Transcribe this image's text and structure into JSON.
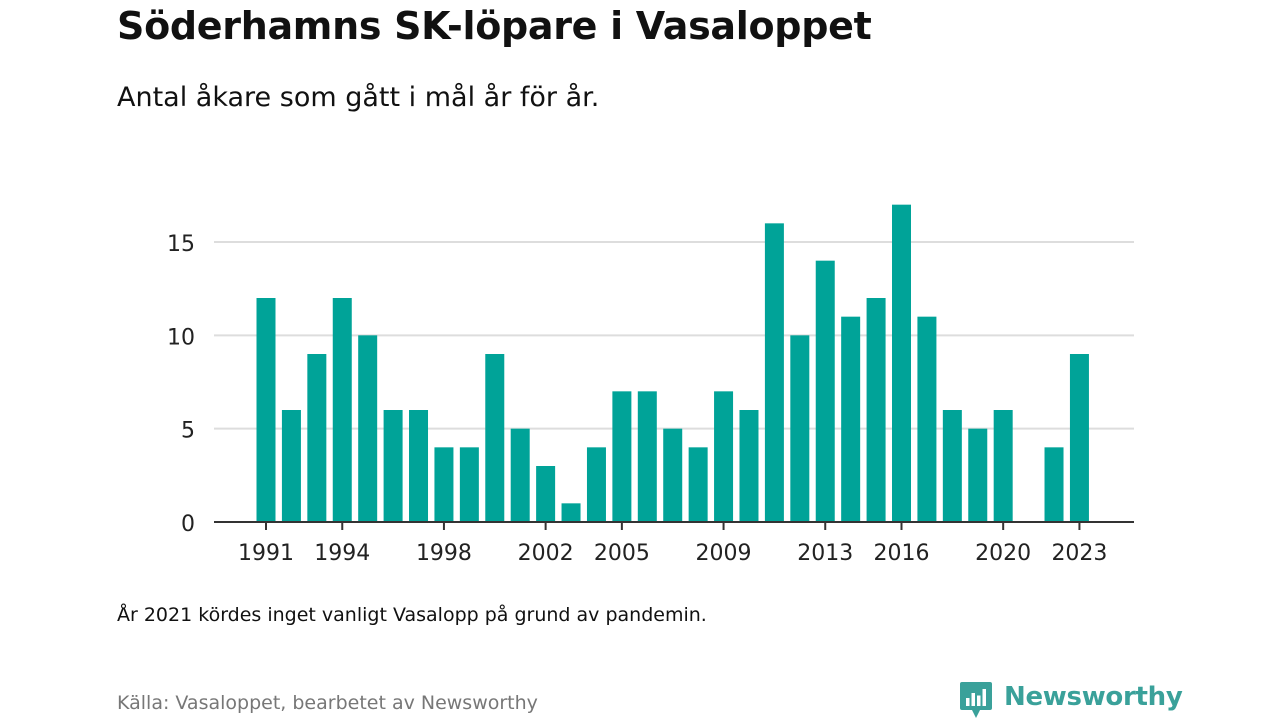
{
  "title": "Söderhamns SK-löpare i Vasaloppet",
  "subtitle": "Antal åkare som gått i mål år för år.",
  "note": "År 2021 kördes inget vanligt Vasalopp på grund av pandemin.",
  "source": "Källa: Vasaloppet, bearbetet av Newsworthy",
  "brand": {
    "name": "Newsworthy",
    "color": "#3aa19a"
  },
  "colors": {
    "bar": "#00a398",
    "grid": "#dddddd",
    "axis": "#333333"
  },
  "chart_data": {
    "type": "bar",
    "title": "Söderhamns SK-löpare i Vasaloppet",
    "xlabel": "",
    "ylabel": "",
    "categories": [
      1991,
      1992,
      1993,
      1994,
      1995,
      1996,
      1997,
      1998,
      1999,
      2000,
      2001,
      2002,
      2003,
      2004,
      2005,
      2006,
      2007,
      2008,
      2009,
      2010,
      2011,
      2012,
      2013,
      2014,
      2015,
      2016,
      2017,
      2018,
      2019,
      2020,
      2021,
      2022,
      2023
    ],
    "values": [
      12,
      6,
      9,
      12,
      10,
      6,
      6,
      4,
      4,
      9,
      5,
      3,
      1,
      4,
      7,
      7,
      5,
      4,
      7,
      6,
      16,
      10,
      14,
      11,
      12,
      17,
      11,
      6,
      5,
      6,
      null,
      4,
      9
    ],
    "x_tick_labels": [
      "1991",
      "1994",
      "1998",
      "2002",
      "2005",
      "2009",
      "2013",
      "2016",
      "2020",
      "2023"
    ],
    "y_ticks": [
      0,
      5,
      10,
      15
    ],
    "ylim": [
      0,
      18
    ],
    "grid": true,
    "legend": "none"
  }
}
